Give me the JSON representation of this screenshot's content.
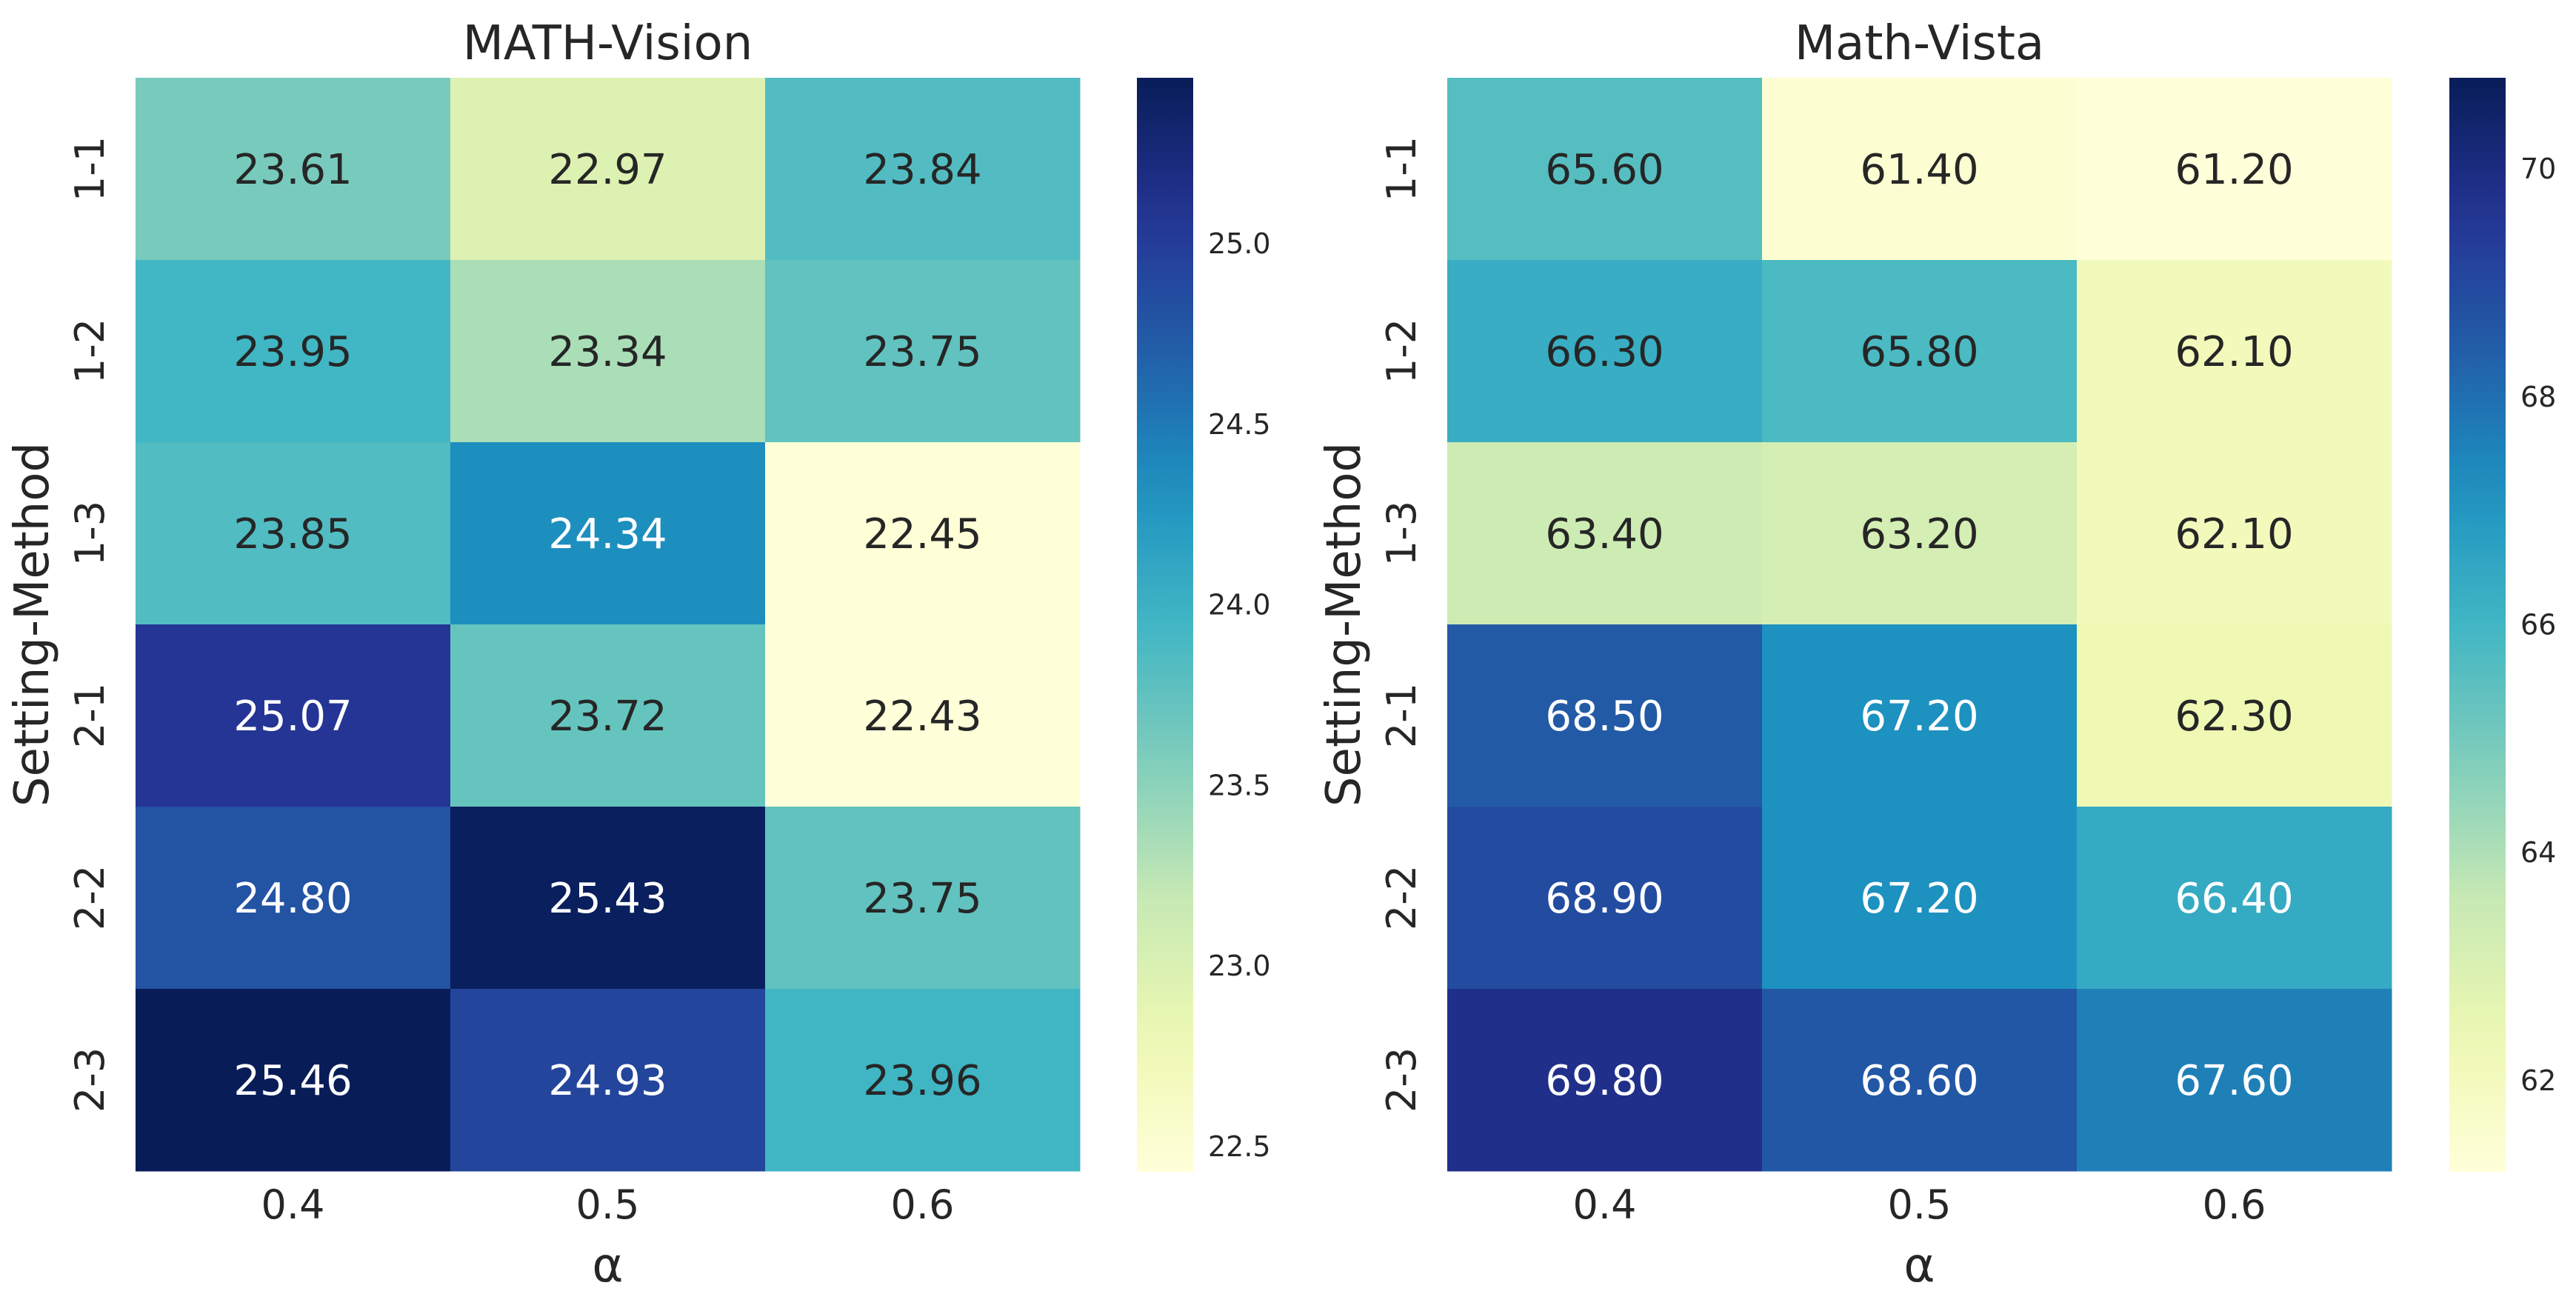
{
  "chart_data": [
    {
      "type": "heatmap",
      "title": "MATH-Vision",
      "xlabel": "α",
      "ylabel": "Setting-Method",
      "x_categories": [
        "0.4",
        "0.5",
        "0.6"
      ],
      "y_categories": [
        "1-1",
        "1-2",
        "1-3",
        "2-1",
        "2-2",
        "2-3"
      ],
      "values": [
        [
          23.61,
          22.97,
          23.84
        ],
        [
          23.95,
          23.34,
          23.75
        ],
        [
          23.85,
          24.34,
          22.45
        ],
        [
          25.07,
          23.72,
          22.43
        ],
        [
          24.8,
          25.43,
          23.75
        ],
        [
          25.46,
          24.93,
          23.96
        ]
      ],
      "value_labels": [
        [
          "23.61",
          "22.97",
          "23.84"
        ],
        [
          "23.95",
          "23.34",
          "23.75"
        ],
        [
          "23.85",
          "24.34",
          "22.45"
        ],
        [
          "25.07",
          "23.72",
          "22.43"
        ],
        [
          "24.80",
          "25.43",
          "23.75"
        ],
        [
          "25.46",
          "24.93",
          "23.96"
        ]
      ],
      "colormap": "YlGnBu",
      "color_range": [
        22.43,
        25.46
      ],
      "colorbar_ticks": [
        22.5,
        23.0,
        23.5,
        24.0,
        24.5,
        25.0
      ],
      "colorbar_tick_labels": [
        "22.5",
        "23.0",
        "23.5",
        "24.0",
        "24.5",
        "25.0"
      ]
    },
    {
      "type": "heatmap",
      "title": "Math-Vista",
      "xlabel": "α",
      "ylabel": "Setting-Method",
      "x_categories": [
        "0.4",
        "0.5",
        "0.6"
      ],
      "y_categories": [
        "1-1",
        "1-2",
        "1-3",
        "2-1",
        "2-2",
        "2-3"
      ],
      "values": [
        [
          65.6,
          61.4,
          61.2
        ],
        [
          66.3,
          65.8,
          62.1
        ],
        [
          63.4,
          63.2,
          62.1
        ],
        [
          68.5,
          67.2,
          62.3
        ],
        [
          68.9,
          67.2,
          66.4
        ],
        [
          69.8,
          68.6,
          67.6
        ]
      ],
      "value_labels": [
        [
          "65.60",
          "61.40",
          "61.20"
        ],
        [
          "66.30",
          "65.80",
          "62.10"
        ],
        [
          "63.40",
          "63.20",
          "62.10"
        ],
        [
          "68.50",
          "67.20",
          "62.30"
        ],
        [
          "68.90",
          "67.20",
          "66.40"
        ],
        [
          "69.80",
          "68.60",
          "67.60"
        ]
      ],
      "colormap": "YlGnBu",
      "color_range": [
        61.2,
        70.8
      ],
      "colorbar_ticks": [
        62,
        64,
        66,
        68,
        70
      ],
      "colorbar_tick_labels": [
        "62",
        "64",
        "66",
        "68",
        "70"
      ]
    }
  ]
}
